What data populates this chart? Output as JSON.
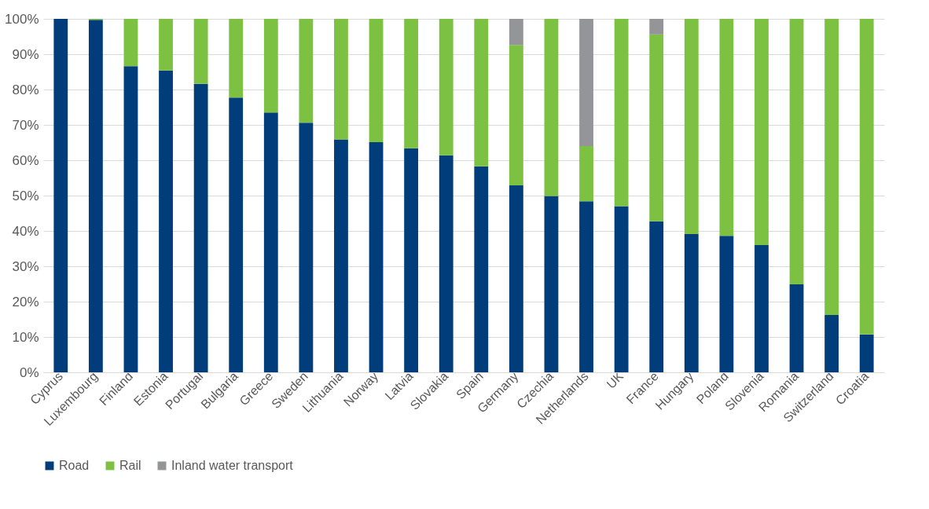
{
  "chart_data": {
    "type": "bar",
    "stacked": true,
    "categories": [
      "Cyprus",
      "Luxembourg",
      "Finland",
      "Estonia",
      "Portugal",
      "Bulgaria",
      "Greece",
      "Sweden",
      "Lithuania",
      "Norway",
      "Latvia",
      "Slovakia",
      "Spain",
      "Germany",
      "Czechia",
      "Netherlands",
      "UK",
      "France",
      "Hungary",
      "Poland",
      "Slovenia",
      "Romania",
      "Switzerland",
      "Croatia"
    ],
    "series": [
      {
        "name": "Road",
        "color": "#003d7a",
        "values": [
          100,
          99.7,
          86.6,
          85.4,
          81.6,
          77.7,
          73.5,
          70.6,
          65.9,
          65.1,
          63.4,
          61.4,
          58.3,
          52.9,
          49.9,
          48.4,
          47.0,
          42.7,
          39.1,
          38.6,
          36.0,
          24.9,
          16.2,
          10.7
        ]
      },
      {
        "name": "Rail",
        "color": "#7dc142",
        "values": [
          0,
          0.3,
          13.4,
          14.6,
          18.4,
          22.3,
          26.5,
          29.4,
          34.1,
          34.9,
          36.6,
          38.6,
          41.7,
          39.7,
          50.1,
          15.6,
          53.0,
          52.9,
          60.9,
          61.4,
          64.0,
          75.1,
          83.8,
          89.3
        ]
      },
      {
        "name": "Inland water transport",
        "color": "#939598",
        "values": [
          0,
          0,
          0,
          0,
          0,
          0,
          0,
          0,
          0,
          0,
          0,
          0,
          0,
          7.4,
          0,
          36.0,
          0,
          4.4,
          0,
          0,
          0,
          0,
          0,
          0
        ]
      }
    ],
    "ylim": [
      0,
      100
    ],
    "yticks": [
      {
        "value": 0,
        "label": "0%"
      },
      {
        "value": 10,
        "label": "10%"
      },
      {
        "value": 20,
        "label": "20%"
      },
      {
        "value": 30,
        "label": "30%"
      },
      {
        "value": 40,
        "label": "40%"
      },
      {
        "value": 50,
        "label": "50%"
      },
      {
        "value": 60,
        "label": "60%"
      },
      {
        "value": 70,
        "label": "70%"
      },
      {
        "value": 80,
        "label": "80%"
      },
      {
        "value": 90,
        "label": "90%"
      },
      {
        "value": 100,
        "label": "100%"
      }
    ],
    "grid": "y",
    "legend": "bottom"
  }
}
